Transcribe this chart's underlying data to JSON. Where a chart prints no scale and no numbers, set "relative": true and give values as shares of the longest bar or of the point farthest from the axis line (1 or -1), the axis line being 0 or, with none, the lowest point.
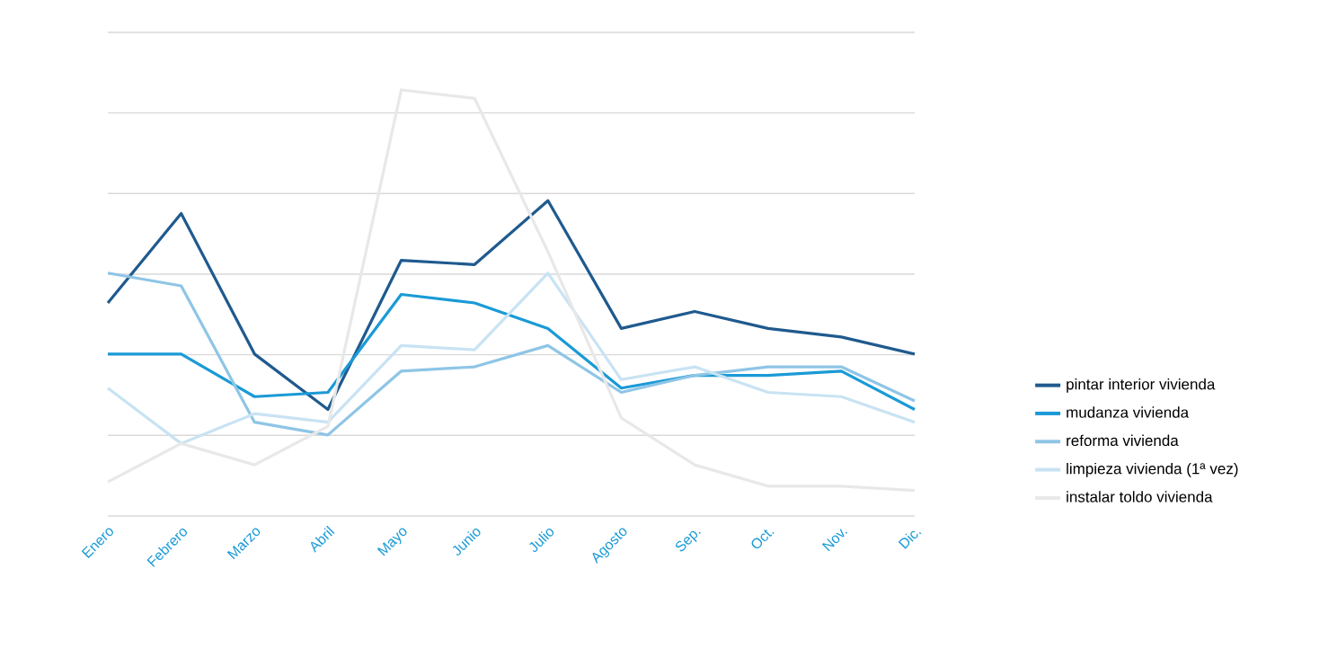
{
  "chart_data": {
    "type": "line",
    "relative": true,
    "grid": "y",
    "legend": "right",
    "marker": "none",
    "line_style": "solid",
    "categories": [
      "Enero",
      "Febrero",
      "Marzo",
      "Abril",
      "Mayo",
      "Junio",
      "Julio",
      "Agosto",
      "Sep.",
      "Oct.",
      "Nov.",
      "Dic."
    ],
    "series": [
      {
        "name": "pintar interior vivienda",
        "color": "#1f5a8e",
        "values": [
          0.5,
          0.71,
          0.38,
          0.25,
          0.6,
          0.59,
          0.74,
          0.44,
          0.48,
          0.44,
          0.42,
          0.38
        ]
      },
      {
        "name": "mudanza vivienda",
        "color": "#1a9ad6",
        "values": [
          0.38,
          0.38,
          0.28,
          0.29,
          0.52,
          0.5,
          0.44,
          0.3,
          0.33,
          0.33,
          0.34,
          0.25
        ]
      },
      {
        "name": "reforma vivienda",
        "color": "#8ec5e6",
        "values": [
          0.57,
          0.54,
          0.22,
          0.19,
          0.34,
          0.35,
          0.4,
          0.29,
          0.33,
          0.35,
          0.35,
          0.27
        ]
      },
      {
        "name": "limpieza vivienda (1ª vez)",
        "color": "#c8e3f3",
        "values": [
          0.3,
          0.17,
          0.24,
          0.22,
          0.4,
          0.39,
          0.57,
          0.32,
          0.35,
          0.29,
          0.28,
          0.22
        ]
      },
      {
        "name": "instalar toldo vivienda",
        "color": "#e8e8e8",
        "values": [
          0.08,
          0.17,
          0.12,
          0.21,
          1.0,
          0.98,
          0.62,
          0.23,
          0.12,
          0.07,
          0.07,
          0.06
        ]
      }
    ]
  }
}
